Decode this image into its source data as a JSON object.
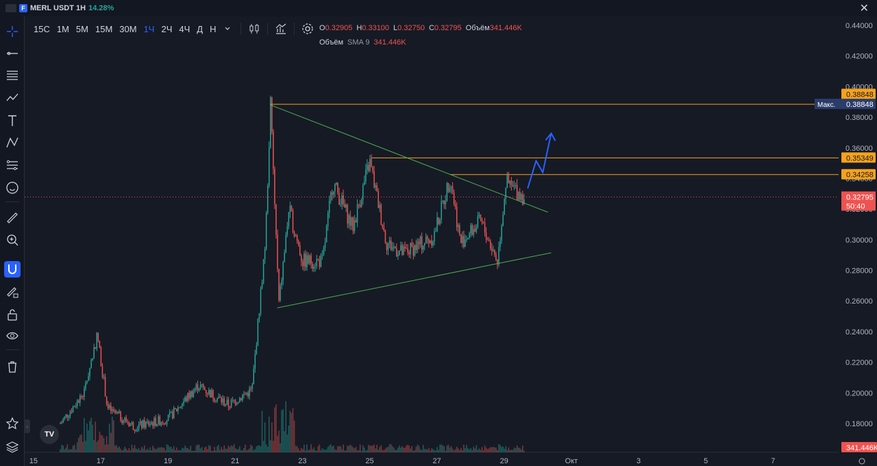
{
  "header": {
    "symbol": "MERL USDT 1H",
    "change": "14.28%",
    "badge": "F"
  },
  "toolbar": {
    "timeframes": [
      "15С",
      "1М",
      "5М",
      "15М",
      "30М",
      "1Ч",
      "2Ч",
      "4Ч",
      "Д",
      "Н"
    ],
    "active_timeframe": "1Ч"
  },
  "legend": {
    "o_label": "O",
    "o_value": "0.32905",
    "h_label": "H",
    "h_value": "0.33100",
    "l_label": "L",
    "l_value": "0.32750",
    "c_label": "C",
    "c_value": "0.32795",
    "vol_label": "Объём",
    "vol_value": "341.446K",
    "sma_label": "Объём",
    "sma_name": "SMA 9",
    "sma_value": "341.446K"
  },
  "price_labels": {
    "level1": "0.38848",
    "max_label": "Макс.",
    "max_value": "0.38848",
    "level2": "0.35349",
    "level3": "0.34258",
    "last_price": "0.32795",
    "countdown": "50:40",
    "volume": "341.446K"
  },
  "colors": {
    "up": "#26a69a",
    "down": "#ef5350",
    "level": "#f7a21b",
    "trend": "#4caf50",
    "arrow": "#2962ff",
    "max_bg": "#2a3c6a"
  },
  "chart_data": {
    "type": "candlestick",
    "y_axis_ticks": [
      "0.44000",
      "0.42000",
      "0.40000",
      "0.38000",
      "0.36000",
      "0.34000",
      "0.32000",
      "0.30000",
      "0.28000",
      "0.26000",
      "0.24000",
      "0.22000",
      "0.20000",
      "0.18000"
    ],
    "ylim": [
      0.164,
      0.446
    ],
    "x_axis_ticks": [
      "15",
      "17",
      "19",
      "21",
      "23",
      "25",
      "27",
      "29",
      "Окт",
      "3",
      "5",
      "7"
    ],
    "x_range_days": [
      14.9,
      38.4
    ],
    "candles": [],
    "key_points": [
      {
        "day": 15.8,
        "price": 0.18
      },
      {
        "day": 16.5,
        "price": 0.2
      },
      {
        "day": 16.9,
        "price": 0.238
      },
      {
        "day": 17.2,
        "price": 0.19
      },
      {
        "day": 18.0,
        "price": 0.178
      },
      {
        "day": 19.0,
        "price": 0.183
      },
      {
        "day": 19.9,
        "price": 0.205
      },
      {
        "day": 20.8,
        "price": 0.192
      },
      {
        "day": 21.5,
        "price": 0.202
      },
      {
        "day": 21.9,
        "price": 0.3
      },
      {
        "day": 22.05,
        "price": 0.388
      },
      {
        "day": 22.3,
        "price": 0.258
      },
      {
        "day": 22.6,
        "price": 0.32
      },
      {
        "day": 23.0,
        "price": 0.286
      },
      {
        "day": 23.6,
        "price": 0.286
      },
      {
        "day": 23.9,
        "price": 0.338
      },
      {
        "day": 24.5,
        "price": 0.308
      },
      {
        "day": 25.0,
        "price": 0.351
      },
      {
        "day": 25.5,
        "price": 0.298
      },
      {
        "day": 26.0,
        "price": 0.291
      },
      {
        "day": 26.9,
        "price": 0.302
      },
      {
        "day": 27.4,
        "price": 0.341
      },
      {
        "day": 27.7,
        "price": 0.298
      },
      {
        "day": 28.3,
        "price": 0.312
      },
      {
        "day": 28.8,
        "price": 0.286
      },
      {
        "day": 29.05,
        "price": 0.337
      },
      {
        "day": 29.6,
        "price": 0.328
      }
    ],
    "levels": [
      0.38848,
      0.35349,
      0.34258
    ],
    "last_price": 0.32795,
    "triangle": {
      "upper": [
        {
          "day": 22.05,
          "price": 0.388
        },
        {
          "day": 30.3,
          "price": 0.318
        }
      ],
      "lower": [
        {
          "day": 22.25,
          "price": 0.2555
        },
        {
          "day": 30.4,
          "price": 0.2915
        }
      ]
    },
    "forecast_arrow": [
      {
        "day": 29.7,
        "price": 0.3335
      },
      {
        "day": 29.95,
        "price": 0.3515
      },
      {
        "day": 30.15,
        "price": 0.344
      },
      {
        "day": 30.4,
        "price": 0.3695
      }
    ],
    "grid": false,
    "legend": "top-left"
  }
}
